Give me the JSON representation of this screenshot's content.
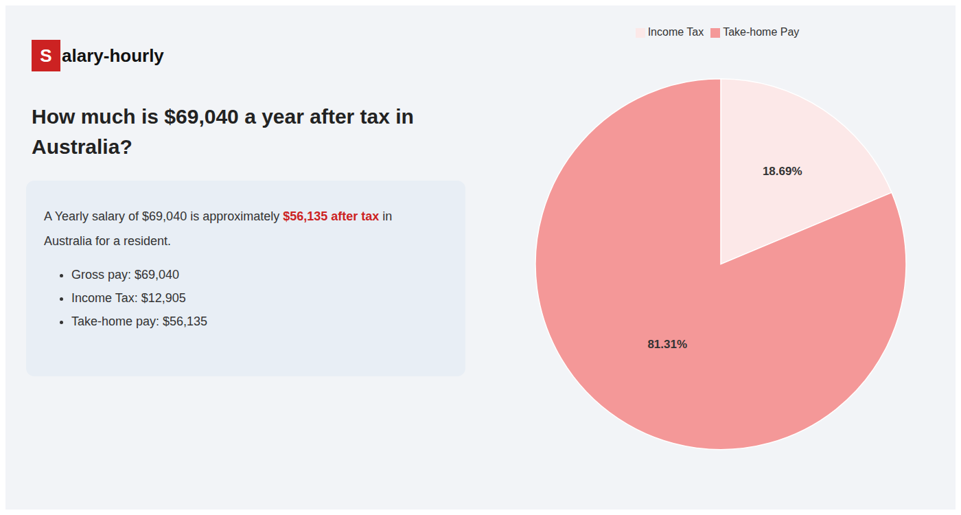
{
  "chart_data": {
    "type": "pie",
    "title": [
      "How much is $69,040 a year after tax in",
      "Australia?"
    ],
    "annotations": [
      [
        {
          "text": "S",
          "color": "#cc2222"
        },
        {
          "text": "alary-hourly"
        }
      ],
      [
        {
          "text": "A Yearly salary of $69,040 is approximately "
        },
        {
          "text": "$56,135 after tax",
          "color": "#cc2222"
        },
        {
          "text": " in"
        }
      ],
      [
        {
          "text": "Australia for a resident."
        }
      ],
      [
        {
          "text": "Gross pay: $69,040"
        }
      ],
      [
        {
          "text": "Income Tax: $12,905"
        }
      ],
      [
        {
          "text": "Take-home pay: $56,135"
        }
      ]
    ],
    "categories": [
      "Income Tax",
      "Take-home Pay"
    ],
    "values": [
      18.69,
      81.31
    ],
    "value_labels": [
      "18.69%",
      "81.31%"
    ],
    "colors": [
      "#fce8e8",
      "#f49898"
    ],
    "data_labels": true,
    "legend": "top"
  }
}
